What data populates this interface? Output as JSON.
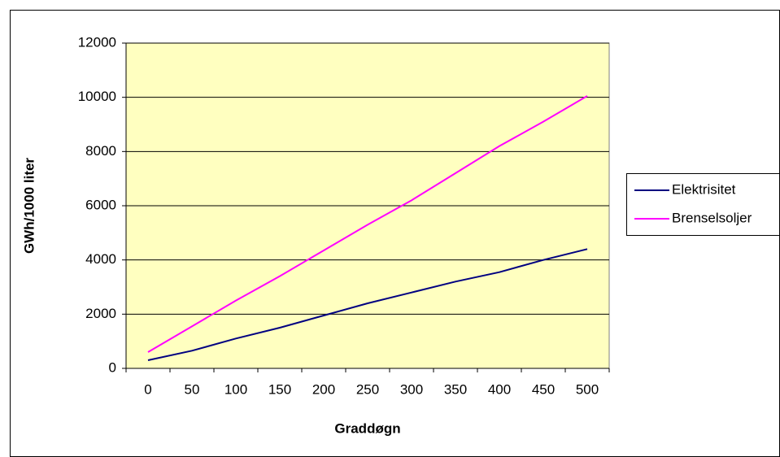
{
  "chart_data": {
    "type": "line",
    "x_label": "Graddøgn",
    "y_label": "GWh/1000 liter",
    "categories": [
      0,
      50,
      100,
      150,
      200,
      250,
      300,
      350,
      400,
      450,
      500
    ],
    "series": [
      {
        "name": "Elektrisitet",
        "color": "#000080",
        "values": [
          300,
          650,
          1100,
          1500,
          1950,
          2400,
          2800,
          3200,
          3550,
          4000,
          4400
        ]
      },
      {
        "name": "Brenselsoljer",
        "color": "#ff00ff",
        "values": [
          600,
          1550,
          2500,
          3400,
          4350,
          5300,
          6200,
          7200,
          8200,
          9100,
          10050
        ]
      }
    ],
    "ylim": [
      0,
      12000
    ],
    "yticks": [
      0,
      2000,
      4000,
      6000,
      8000,
      10000,
      12000
    ],
    "grid": true,
    "plot_background": "#ffffc0",
    "legend": "right"
  }
}
